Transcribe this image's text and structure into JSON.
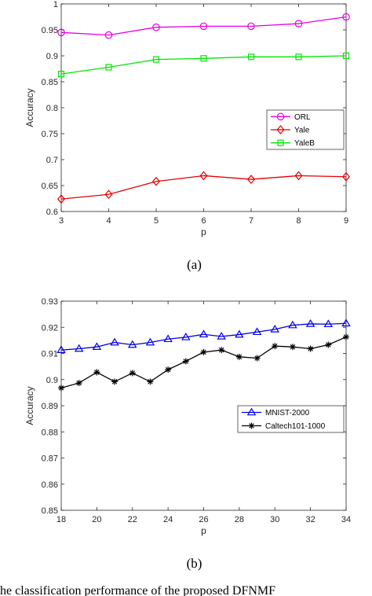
{
  "chart_data": [
    {
      "type": "line",
      "xlabel": "p",
      "ylabel": "Accuracy",
      "xlim": [
        3,
        9
      ],
      "ylim": [
        0.6,
        1
      ],
      "xticks": [
        "3",
        "4",
        "5",
        "6",
        "7",
        "8",
        "9"
      ],
      "yticks": [
        "0.6",
        "0.65",
        "0.7",
        "0.75",
        "0.8",
        "0.85",
        "0.9",
        "0.95",
        "1"
      ],
      "x": [
        3,
        4,
        5,
        6,
        7,
        8,
        9
      ],
      "legend_position": "right-middle",
      "grid": false,
      "caption": "(a)",
      "series": [
        {
          "name": "ORL",
          "color": "#e600e6",
          "marker": "circle",
          "values": [
            0.945,
            0.94,
            0.955,
            0.957,
            0.957,
            0.962,
            0.975
          ]
        },
        {
          "name": "Yale",
          "color": "#e60000",
          "marker": "diamond",
          "values": [
            0.624,
            0.633,
            0.658,
            0.669,
            0.662,
            0.669,
            0.667
          ]
        },
        {
          "name": "YaleB",
          "color": "#00e600",
          "marker": "square",
          "values": [
            0.865,
            0.878,
            0.893,
            0.895,
            0.898,
            0.898,
            0.9
          ]
        }
      ]
    },
    {
      "type": "line",
      "xlabel": "p",
      "ylabel": "Accuracy",
      "xlim": [
        18,
        34
      ],
      "ylim": [
        0.85,
        0.93
      ],
      "xticks": [
        "18",
        "20",
        "22",
        "24",
        "26",
        "28",
        "30",
        "32",
        "34"
      ],
      "yticks": [
        "0.85",
        "0.86",
        "0.87",
        "0.88",
        "0.89",
        "0.9",
        "0.91",
        "0.92",
        "0.93"
      ],
      "x": [
        18,
        19,
        20,
        21,
        22,
        23,
        24,
        25,
        26,
        27,
        28,
        29,
        30,
        31,
        32,
        33,
        34
      ],
      "legend_position": "right-middle",
      "grid": false,
      "caption": "(b)",
      "series": [
        {
          "name": "MNIST-2000",
          "color": "#0000e6",
          "marker": "triangle",
          "values": [
            0.9113,
            0.9118,
            0.9125,
            0.9142,
            0.9133,
            0.9142,
            0.9155,
            0.9162,
            0.9173,
            0.9165,
            0.9172,
            0.9182,
            0.9192,
            0.9208,
            0.9213,
            0.9212,
            0.9215
          ]
        },
        {
          "name": "Caltech101-1000",
          "color": "#000000",
          "marker": "star",
          "values": [
            0.8968,
            0.8987,
            0.9028,
            0.8992,
            0.9025,
            0.8992,
            0.9038,
            0.907,
            0.9105,
            0.9113,
            0.9087,
            0.9082,
            0.9128,
            0.9125,
            0.9118,
            0.9133,
            0.9163
          ]
        }
      ]
    }
  ],
  "bottom_caption": "he classification performance of the proposed DFNMF"
}
